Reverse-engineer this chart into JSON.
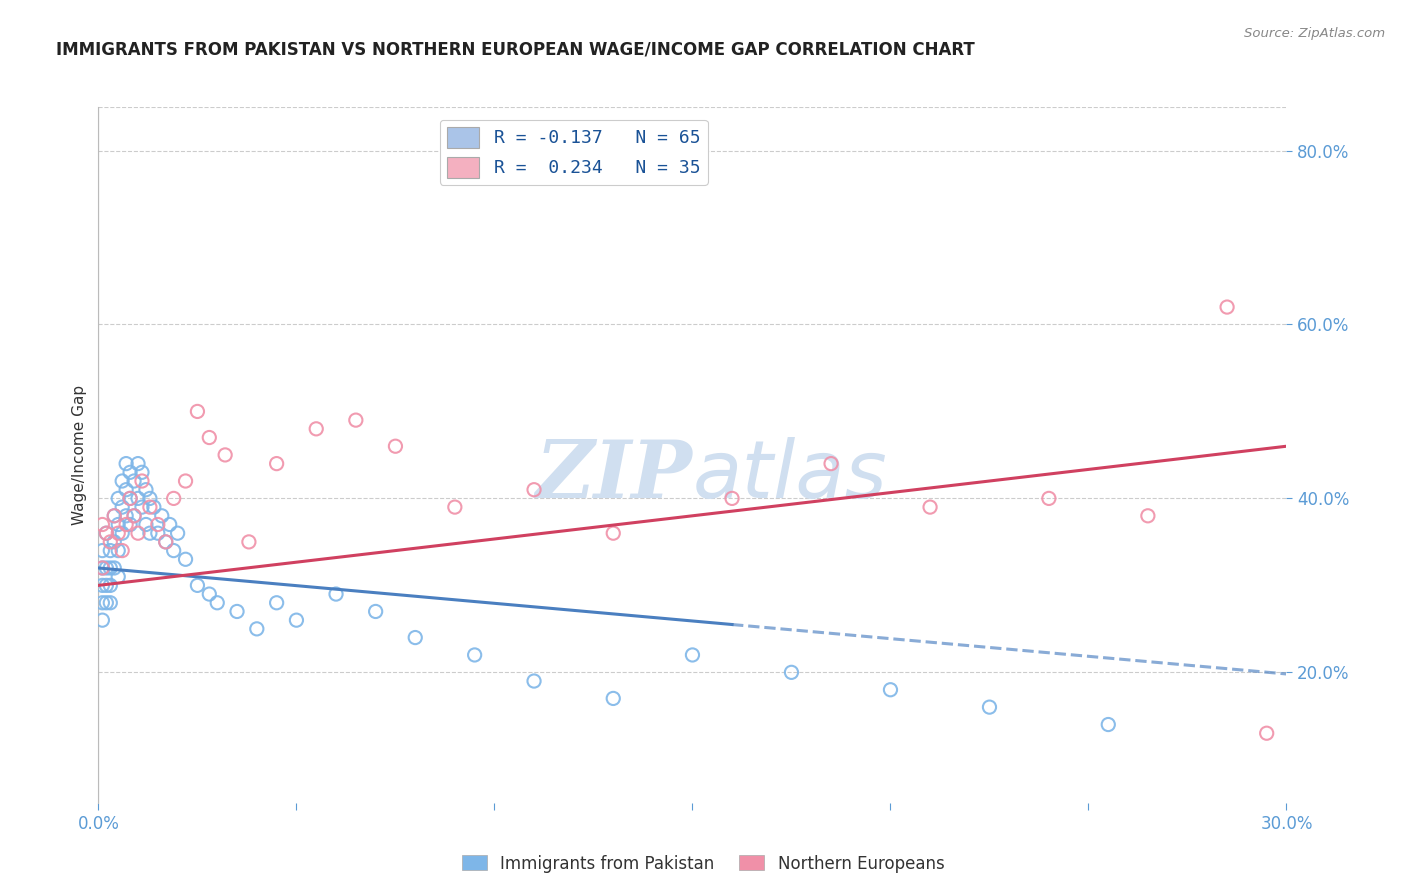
{
  "title": "IMMIGRANTS FROM PAKISTAN VS NORTHERN EUROPEAN WAGE/INCOME GAP CORRELATION CHART",
  "source": "Source: ZipAtlas.com",
  "ylabel": "Wage/Income Gap",
  "right_yticklabels": [
    "20.0%",
    "40.0%",
    "60.0%",
    "80.0%"
  ],
  "right_ytick_vals": [
    0.2,
    0.4,
    0.6,
    0.8
  ],
  "legend_label1": "R = -0.137   N = 65",
  "legend_label2": "R =  0.234   N = 35",
  "legend_color1": "#aac4e8",
  "legend_color2": "#f4b0c0",
  "scatter_color1": "#7eb6e8",
  "scatter_color2": "#f090a8",
  "trendline1_color": "#4a7fc0",
  "trendline2_color": "#d04060",
  "watermark_color": "#d0dff0",
  "pakistan_x": [
    0.001,
    0.001,
    0.001,
    0.001,
    0.001,
    0.002,
    0.002,
    0.002,
    0.002,
    0.003,
    0.003,
    0.003,
    0.003,
    0.004,
    0.004,
    0.004,
    0.005,
    0.005,
    0.005,
    0.005,
    0.006,
    0.006,
    0.006,
    0.007,
    0.007,
    0.007,
    0.008,
    0.008,
    0.008,
    0.009,
    0.009,
    0.01,
    0.01,
    0.011,
    0.011,
    0.012,
    0.012,
    0.013,
    0.013,
    0.014,
    0.015,
    0.016,
    0.017,
    0.018,
    0.019,
    0.02,
    0.022,
    0.025,
    0.028,
    0.03,
    0.035,
    0.04,
    0.045,
    0.05,
    0.06,
    0.07,
    0.08,
    0.095,
    0.11,
    0.13,
    0.15,
    0.175,
    0.2,
    0.225,
    0.255
  ],
  "pakistan_y": [
    0.32,
    0.3,
    0.28,
    0.26,
    0.34,
    0.32,
    0.3,
    0.28,
    0.36,
    0.34,
    0.32,
    0.3,
    0.28,
    0.38,
    0.35,
    0.32,
    0.4,
    0.37,
    0.34,
    0.31,
    0.42,
    0.39,
    0.36,
    0.44,
    0.41,
    0.38,
    0.43,
    0.4,
    0.37,
    0.42,
    0.38,
    0.44,
    0.4,
    0.43,
    0.39,
    0.41,
    0.37,
    0.4,
    0.36,
    0.39,
    0.36,
    0.38,
    0.35,
    0.37,
    0.34,
    0.36,
    0.33,
    0.3,
    0.29,
    0.28,
    0.27,
    0.25,
    0.28,
    0.26,
    0.29,
    0.27,
    0.24,
    0.22,
    0.19,
    0.17,
    0.22,
    0.2,
    0.18,
    0.16,
    0.14
  ],
  "northern_x": [
    0.001,
    0.001,
    0.002,
    0.003,
    0.004,
    0.005,
    0.006,
    0.007,
    0.008,
    0.009,
    0.01,
    0.011,
    0.013,
    0.015,
    0.017,
    0.019,
    0.022,
    0.025,
    0.028,
    0.032,
    0.038,
    0.045,
    0.055,
    0.065,
    0.075,
    0.09,
    0.11,
    0.13,
    0.16,
    0.185,
    0.21,
    0.24,
    0.265,
    0.285,
    0.295
  ],
  "northern_y": [
    0.37,
    0.32,
    0.36,
    0.35,
    0.38,
    0.36,
    0.34,
    0.37,
    0.4,
    0.38,
    0.36,
    0.42,
    0.39,
    0.37,
    0.35,
    0.4,
    0.42,
    0.5,
    0.47,
    0.45,
    0.35,
    0.44,
    0.48,
    0.49,
    0.46,
    0.39,
    0.41,
    0.36,
    0.4,
    0.44,
    0.39,
    0.4,
    0.38,
    0.62,
    0.13
  ],
  "xlim": [
    0.0,
    0.3
  ],
  "ylim": [
    0.05,
    0.85
  ],
  "fig_bg": "#ffffff",
  "grid_color": "#cccccc",
  "xtick_positions": [
    0.0,
    0.05,
    0.1,
    0.15,
    0.2,
    0.25,
    0.3
  ],
  "xtick_labels_show": [
    "0.0%",
    "",
    "",
    "",
    "",
    "",
    "30.0%"
  ]
}
